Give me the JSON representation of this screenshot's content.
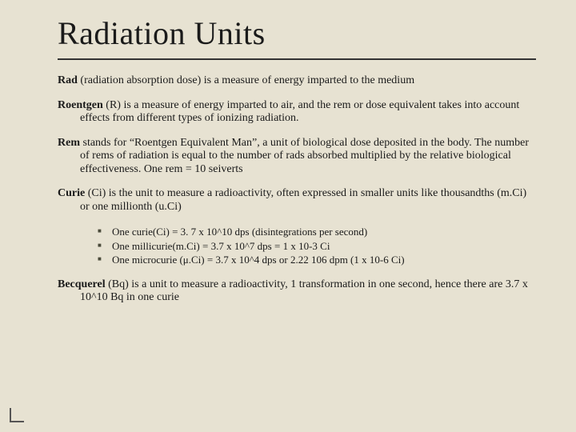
{
  "colors": {
    "background": "#e7e2d2",
    "text": "#1a1a1a",
    "rule": "#333333",
    "bullet": "#4a4a3a",
    "corner": "#555555"
  },
  "typography": {
    "title_fontsize": 40,
    "body_fontsize": 14,
    "sublist_fontsize": 13,
    "font_family": "Georgia, Times New Roman, serif"
  },
  "title": "Radiation Units",
  "definitions": [
    {
      "term": "Rad",
      "text": " (radiation absorption dose) is a measure of energy imparted to the medium"
    },
    {
      "term": "Roentgen",
      "text": " (R) is a measure of energy imparted to air, and the rem or dose equivalent takes into account effects from different types of ionizing radiation."
    },
    {
      "term": "Rem",
      "text": " stands for “Roentgen Equivalent Man”, a unit of biological dose deposited in the body.  The number of rems of radiation is equal to the number of rads absorbed multiplied by the relative biological effectiveness.  One rem = 10 seiverts"
    },
    {
      "term": "Curie",
      "text": " (Ci) is the unit to measure a radioactivity, often expressed in smaller units like thousandths (m.Ci) or one millionth (u.Ci)"
    }
  ],
  "sublist": [
    "One curie(Ci) = 3. 7 x 10^10 dps (disintegrations per second)",
    "One millicurie(m.Ci) = 3.7 x 10^7 dps = 1 x 10-3 Ci",
    "One microcurie (μ.Ci) = 3.7 x 10^4 dps or 2.22 106 dpm (1 x 10-6 Ci)"
  ],
  "final": {
    "term": "Becquerel",
    "text": " (Bq) is a unit to measure a radioactivity, 1 transformation in one second, hence there are 3.7 x 10^10  Bq in one curie"
  }
}
